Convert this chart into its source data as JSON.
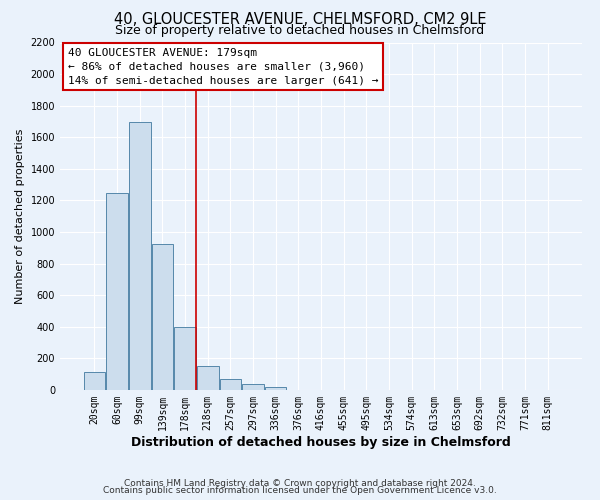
{
  "title": "40, GLOUCESTER AVENUE, CHELMSFORD, CM2 9LE",
  "subtitle": "Size of property relative to detached houses in Chelmsford",
  "xlabel": "Distribution of detached houses by size in Chelmsford",
  "ylabel": "Number of detached properties",
  "footer_lines": [
    "Contains HM Land Registry data © Crown copyright and database right 2024.",
    "Contains public sector information licensed under the Open Government Licence v3.0."
  ],
  "bar_labels": [
    "20sqm",
    "60sqm",
    "99sqm",
    "139sqm",
    "178sqm",
    "218sqm",
    "257sqm",
    "297sqm",
    "336sqm",
    "376sqm",
    "416sqm",
    "455sqm",
    "495sqm",
    "534sqm",
    "574sqm",
    "613sqm",
    "653sqm",
    "692sqm",
    "732sqm",
    "771sqm",
    "811sqm"
  ],
  "bar_values": [
    115,
    1245,
    1695,
    925,
    400,
    150,
    70,
    35,
    20,
    0,
    0,
    0,
    0,
    0,
    0,
    0,
    0,
    0,
    0,
    0,
    0
  ],
  "bar_color": "#ccdded",
  "bar_edge_color": "#5588aa",
  "highlight_bar_index": 4,
  "highlight_line_color": "#cc0000",
  "ylim": [
    0,
    2200
  ],
  "yticks": [
    0,
    200,
    400,
    600,
    800,
    1000,
    1200,
    1400,
    1600,
    1800,
    2000,
    2200
  ],
  "annotation_title": "40 GLOUCESTER AVENUE: 179sqm",
  "annotation_line1": "← 86% of detached houses are smaller (3,960)",
  "annotation_line2": "14% of semi-detached houses are larger (641) →",
  "annotation_box_color": "#ffffff",
  "annotation_box_edge_color": "#cc0000",
  "background_color": "#eaf2fb",
  "grid_color": "#ffffff",
  "title_fontsize": 10.5,
  "subtitle_fontsize": 9,
  "xlabel_fontsize": 9,
  "ylabel_fontsize": 8,
  "tick_fontsize": 7,
  "annotation_fontsize": 8,
  "footer_fontsize": 6.5
}
